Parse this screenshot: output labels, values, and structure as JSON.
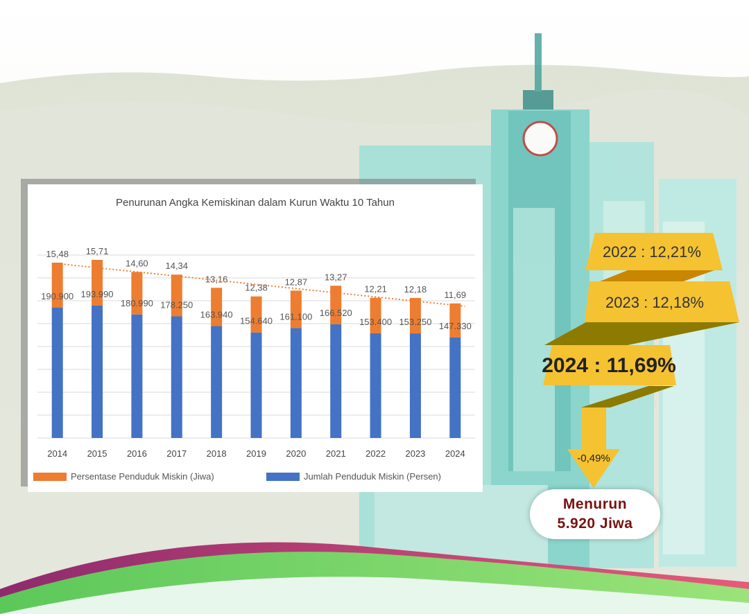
{
  "chart_data": {
    "type": "bar",
    "title": "Penurunan Angka Kemiskinan dalam Kurun Waktu 10 Tahun",
    "categories": [
      "2014",
      "2015",
      "2016",
      "2017",
      "2018",
      "2019",
      "2020",
      "2021",
      "2022",
      "2023",
      "2024"
    ],
    "series": [
      {
        "name": "Jumlah Penduduk Miskin (Persen)",
        "values": [
          190900,
          193990,
          180990,
          178250,
          163940,
          154640,
          161100,
          166520,
          153400,
          153250,
          147330
        ],
        "labels": [
          "190.900",
          "193.990",
          "180.990",
          "178.250",
          "163.940",
          "154.640",
          "161.100",
          "166.520",
          "153.400",
          "153.250",
          "147.330"
        ],
        "color": "#4472c4"
      },
      {
        "name": "Persentase Penduduk Miskin (Jiwa)",
        "values": [
          15.48,
          15.71,
          14.6,
          14.34,
          13.16,
          12.38,
          12.87,
          13.27,
          12.21,
          12.18,
          11.69
        ],
        "labels": [
          "15,48",
          "15,71",
          "14,60",
          "14,34",
          "13,16",
          "12,38",
          "12,87",
          "13,27",
          "12,21",
          "12,18",
          "11,69"
        ],
        "color": "#ed7d31"
      }
    ],
    "trendline": {
      "color": "#ed7d31",
      "style": "dotted"
    },
    "grid": true,
    "legend": "bottom",
    "xlabel": "",
    "ylabel": ""
  },
  "banners": [
    {
      "text": "2022 : 12,21%"
    },
    {
      "text": "2023 : 12,18%"
    },
    {
      "text": "2024 : 11,69%"
    }
  ],
  "arrow_label": "-0,49%",
  "badge": {
    "line1": "Menurun",
    "line2": "5.920 Jiwa"
  },
  "colors": {
    "banner": "#f5c232",
    "banner_dark": "#b58600",
    "arrow": "#f5c232",
    "badge_text": "#7a1010",
    "building": "#7dd3cb"
  }
}
